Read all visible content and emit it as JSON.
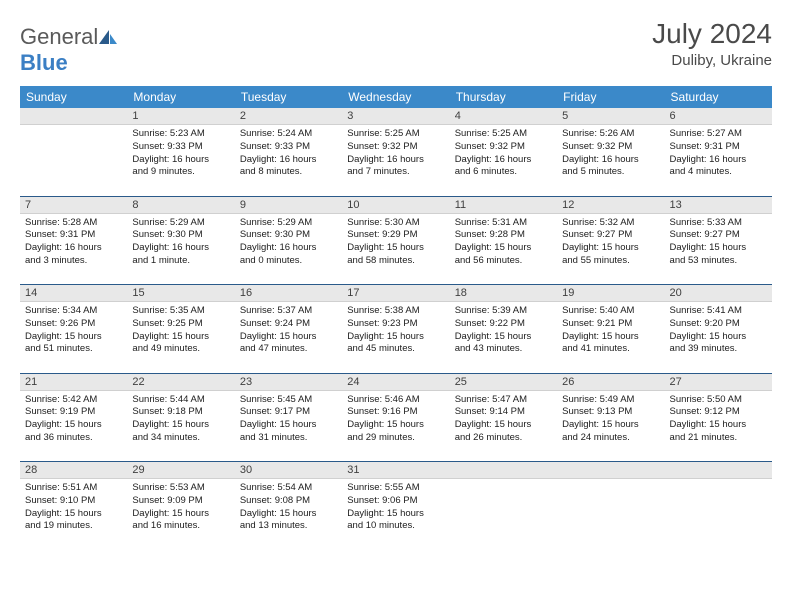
{
  "brand": {
    "name_a": "General",
    "name_b": "Blue"
  },
  "title": {
    "month": "July 2024",
    "location": "Duliby, Ukraine"
  },
  "colors": {
    "header_bg": "#3b89c9",
    "daynum_bg": "#e8e8e8",
    "separator": "#2a5a8a",
    "text": "#202020"
  },
  "weekdays": [
    "Sunday",
    "Monday",
    "Tuesday",
    "Wednesday",
    "Thursday",
    "Friday",
    "Saturday"
  ],
  "weeks": [
    [
      {
        "n": "",
        "lines": []
      },
      {
        "n": "1",
        "lines": [
          "Sunrise: 5:23 AM",
          "Sunset: 9:33 PM",
          "Daylight: 16 hours",
          "and 9 minutes."
        ]
      },
      {
        "n": "2",
        "lines": [
          "Sunrise: 5:24 AM",
          "Sunset: 9:33 PM",
          "Daylight: 16 hours",
          "and 8 minutes."
        ]
      },
      {
        "n": "3",
        "lines": [
          "Sunrise: 5:25 AM",
          "Sunset: 9:32 PM",
          "Daylight: 16 hours",
          "and 7 minutes."
        ]
      },
      {
        "n": "4",
        "lines": [
          "Sunrise: 5:25 AM",
          "Sunset: 9:32 PM",
          "Daylight: 16 hours",
          "and 6 minutes."
        ]
      },
      {
        "n": "5",
        "lines": [
          "Sunrise: 5:26 AM",
          "Sunset: 9:32 PM",
          "Daylight: 16 hours",
          "and 5 minutes."
        ]
      },
      {
        "n": "6",
        "lines": [
          "Sunrise: 5:27 AM",
          "Sunset: 9:31 PM",
          "Daylight: 16 hours",
          "and 4 minutes."
        ]
      }
    ],
    [
      {
        "n": "7",
        "lines": [
          "Sunrise: 5:28 AM",
          "Sunset: 9:31 PM",
          "Daylight: 16 hours",
          "and 3 minutes."
        ]
      },
      {
        "n": "8",
        "lines": [
          "Sunrise: 5:29 AM",
          "Sunset: 9:30 PM",
          "Daylight: 16 hours",
          "and 1 minute."
        ]
      },
      {
        "n": "9",
        "lines": [
          "Sunrise: 5:29 AM",
          "Sunset: 9:30 PM",
          "Daylight: 16 hours",
          "and 0 minutes."
        ]
      },
      {
        "n": "10",
        "lines": [
          "Sunrise: 5:30 AM",
          "Sunset: 9:29 PM",
          "Daylight: 15 hours",
          "and 58 minutes."
        ]
      },
      {
        "n": "11",
        "lines": [
          "Sunrise: 5:31 AM",
          "Sunset: 9:28 PM",
          "Daylight: 15 hours",
          "and 56 minutes."
        ]
      },
      {
        "n": "12",
        "lines": [
          "Sunrise: 5:32 AM",
          "Sunset: 9:27 PM",
          "Daylight: 15 hours",
          "and 55 minutes."
        ]
      },
      {
        "n": "13",
        "lines": [
          "Sunrise: 5:33 AM",
          "Sunset: 9:27 PM",
          "Daylight: 15 hours",
          "and 53 minutes."
        ]
      }
    ],
    [
      {
        "n": "14",
        "lines": [
          "Sunrise: 5:34 AM",
          "Sunset: 9:26 PM",
          "Daylight: 15 hours",
          "and 51 minutes."
        ]
      },
      {
        "n": "15",
        "lines": [
          "Sunrise: 5:35 AM",
          "Sunset: 9:25 PM",
          "Daylight: 15 hours",
          "and 49 minutes."
        ]
      },
      {
        "n": "16",
        "lines": [
          "Sunrise: 5:37 AM",
          "Sunset: 9:24 PM",
          "Daylight: 15 hours",
          "and 47 minutes."
        ]
      },
      {
        "n": "17",
        "lines": [
          "Sunrise: 5:38 AM",
          "Sunset: 9:23 PM",
          "Daylight: 15 hours",
          "and 45 minutes."
        ]
      },
      {
        "n": "18",
        "lines": [
          "Sunrise: 5:39 AM",
          "Sunset: 9:22 PM",
          "Daylight: 15 hours",
          "and 43 minutes."
        ]
      },
      {
        "n": "19",
        "lines": [
          "Sunrise: 5:40 AM",
          "Sunset: 9:21 PM",
          "Daylight: 15 hours",
          "and 41 minutes."
        ]
      },
      {
        "n": "20",
        "lines": [
          "Sunrise: 5:41 AM",
          "Sunset: 9:20 PM",
          "Daylight: 15 hours",
          "and 39 minutes."
        ]
      }
    ],
    [
      {
        "n": "21",
        "lines": [
          "Sunrise: 5:42 AM",
          "Sunset: 9:19 PM",
          "Daylight: 15 hours",
          "and 36 minutes."
        ]
      },
      {
        "n": "22",
        "lines": [
          "Sunrise: 5:44 AM",
          "Sunset: 9:18 PM",
          "Daylight: 15 hours",
          "and 34 minutes."
        ]
      },
      {
        "n": "23",
        "lines": [
          "Sunrise: 5:45 AM",
          "Sunset: 9:17 PM",
          "Daylight: 15 hours",
          "and 31 minutes."
        ]
      },
      {
        "n": "24",
        "lines": [
          "Sunrise: 5:46 AM",
          "Sunset: 9:16 PM",
          "Daylight: 15 hours",
          "and 29 minutes."
        ]
      },
      {
        "n": "25",
        "lines": [
          "Sunrise: 5:47 AM",
          "Sunset: 9:14 PM",
          "Daylight: 15 hours",
          "and 26 minutes."
        ]
      },
      {
        "n": "26",
        "lines": [
          "Sunrise: 5:49 AM",
          "Sunset: 9:13 PM",
          "Daylight: 15 hours",
          "and 24 minutes."
        ]
      },
      {
        "n": "27",
        "lines": [
          "Sunrise: 5:50 AM",
          "Sunset: 9:12 PM",
          "Daylight: 15 hours",
          "and 21 minutes."
        ]
      }
    ],
    [
      {
        "n": "28",
        "lines": [
          "Sunrise: 5:51 AM",
          "Sunset: 9:10 PM",
          "Daylight: 15 hours",
          "and 19 minutes."
        ]
      },
      {
        "n": "29",
        "lines": [
          "Sunrise: 5:53 AM",
          "Sunset: 9:09 PM",
          "Daylight: 15 hours",
          "and 16 minutes."
        ]
      },
      {
        "n": "30",
        "lines": [
          "Sunrise: 5:54 AM",
          "Sunset: 9:08 PM",
          "Daylight: 15 hours",
          "and 13 minutes."
        ]
      },
      {
        "n": "31",
        "lines": [
          "Sunrise: 5:55 AM",
          "Sunset: 9:06 PM",
          "Daylight: 15 hours",
          "and 10 minutes."
        ]
      },
      {
        "n": "",
        "lines": []
      },
      {
        "n": "",
        "lines": []
      },
      {
        "n": "",
        "lines": []
      }
    ]
  ]
}
